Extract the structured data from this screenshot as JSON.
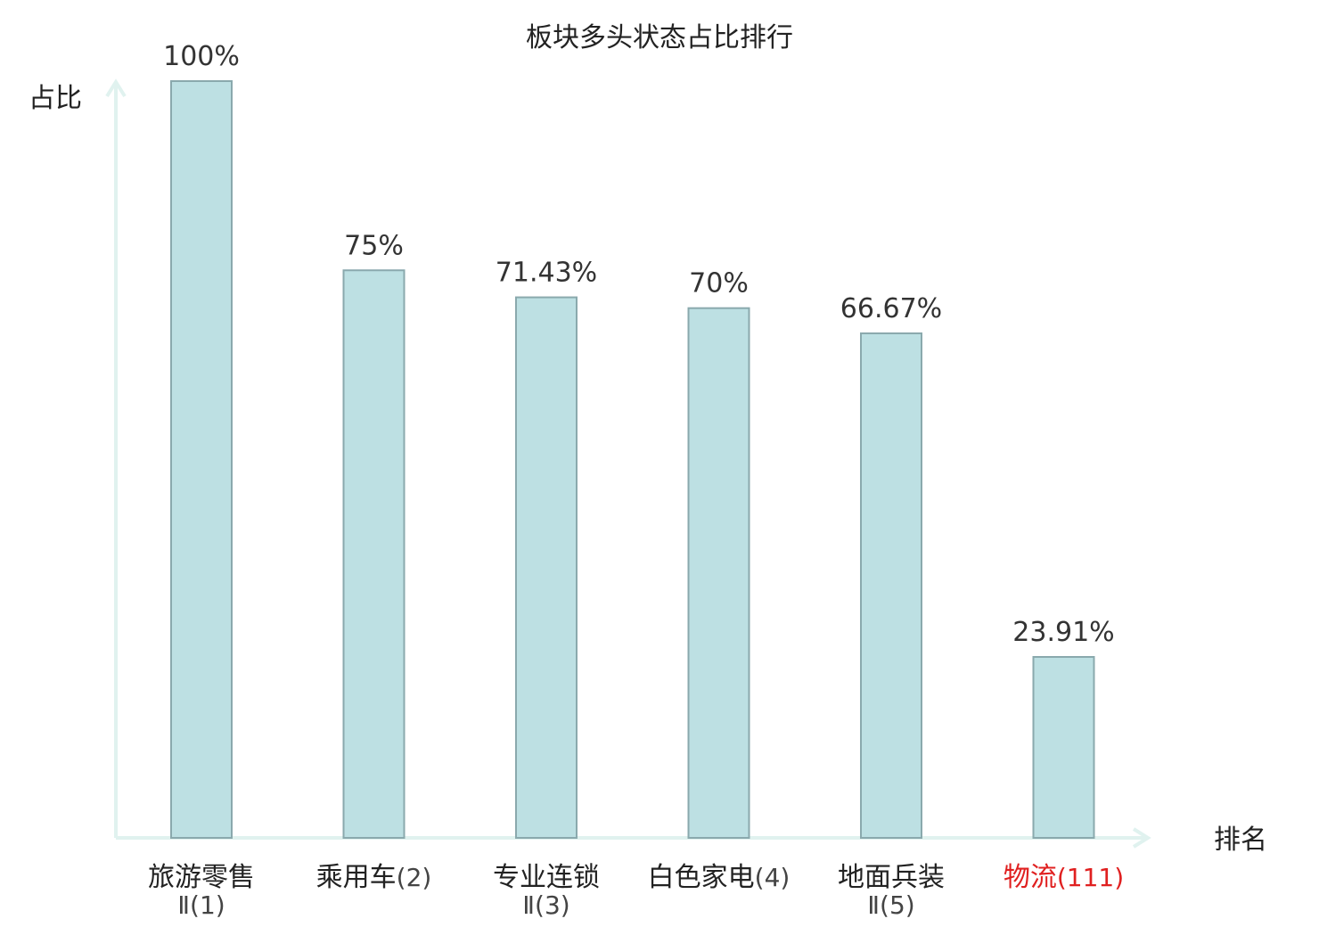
{
  "chart_data": {
    "type": "bar",
    "title": "板块多头状态占比排行",
    "ylabel": "占比",
    "xlabel": "排名",
    "ylim": [
      0,
      100
    ],
    "grid": false,
    "bar_color": "#bde0e3",
    "bar_edge_color": "#8aa9ad",
    "axis_color": "#e0f2ef",
    "highlight_color": "#e02020",
    "text_color": "#333333",
    "categories": [
      {
        "name": "旅游零售",
        "rank": "Ⅱ(1)",
        "value": 100,
        "label": "100%",
        "highlight": false
      },
      {
        "name": "乘用车",
        "rank": "(2)",
        "value": 75,
        "label": "75%",
        "highlight": false
      },
      {
        "name": "专业连锁",
        "rank": "Ⅱ(3)",
        "value": 71.43,
        "label": "71.43%",
        "highlight": false
      },
      {
        "name": "白色家电",
        "rank": "(4)",
        "value": 70,
        "label": "70%",
        "highlight": false
      },
      {
        "name": "地面兵装",
        "rank": "Ⅱ(5)",
        "value": 66.67,
        "label": "66.67%",
        "highlight": false
      },
      {
        "name": "物流",
        "rank": "(111)",
        "value": 23.91,
        "label": "23.91%",
        "highlight": true
      }
    ]
  }
}
